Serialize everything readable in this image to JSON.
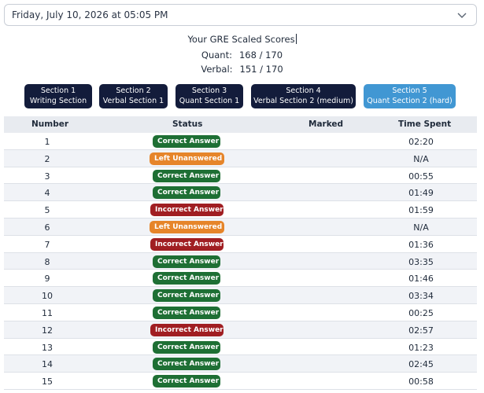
{
  "date_select": {
    "value": "Friday, July 10, 2026 at 05:05 PM",
    "icon": "chevron-down-icon"
  },
  "scores": {
    "title": "Your GRE Scaled Scores",
    "quant_label": "Quant:",
    "quant_value": "168 / 170",
    "verbal_label": "Verbal:",
    "verbal_value": "151 / 170"
  },
  "sections": [
    {
      "line1": "Section 1",
      "line2": "Writing Section",
      "active": false
    },
    {
      "line1": "Section 2",
      "line2": "Verbal Section 1",
      "active": false
    },
    {
      "line1": "Section 3",
      "line2": "Quant Section 1",
      "active": false
    },
    {
      "line1": "Section 4",
      "line2": "Verbal Section 2 (medium)",
      "active": false
    },
    {
      "line1": "Section 5",
      "line2": "Quant Section 2 (hard)",
      "active": true
    }
  ],
  "table": {
    "headers": {
      "number": "Number",
      "status": "Status",
      "marked": "Marked",
      "time": "Time Spent"
    },
    "rows": [
      {
        "number": "1",
        "status": "Correct Answer",
        "kind": "correct",
        "marked": "",
        "time": "02:20"
      },
      {
        "number": "2",
        "status": "Left Unanswered",
        "kind": "unanswered",
        "marked": "",
        "time": "N/A"
      },
      {
        "number": "3",
        "status": "Correct Answer",
        "kind": "correct",
        "marked": "",
        "time": "00:55"
      },
      {
        "number": "4",
        "status": "Correct Answer",
        "kind": "correct",
        "marked": "",
        "time": "01:49"
      },
      {
        "number": "5",
        "status": "Incorrect Answer",
        "kind": "incorrect",
        "marked": "",
        "time": "01:59"
      },
      {
        "number": "6",
        "status": "Left Unanswered",
        "kind": "unanswered",
        "marked": "",
        "time": "N/A"
      },
      {
        "number": "7",
        "status": "Incorrect Answer",
        "kind": "incorrect",
        "marked": "",
        "time": "01:36"
      },
      {
        "number": "8",
        "status": "Correct Answer",
        "kind": "correct",
        "marked": "",
        "time": "03:35"
      },
      {
        "number": "9",
        "status": "Correct Answer",
        "kind": "correct",
        "marked": "",
        "time": "01:46"
      },
      {
        "number": "10",
        "status": "Correct Answer",
        "kind": "correct",
        "marked": "",
        "time": "03:34"
      },
      {
        "number": "11",
        "status": "Correct Answer",
        "kind": "correct",
        "marked": "",
        "time": "00:25"
      },
      {
        "number": "12",
        "status": "Incorrect Answer",
        "kind": "incorrect",
        "marked": "",
        "time": "02:57"
      },
      {
        "number": "13",
        "status": "Correct Answer",
        "kind": "correct",
        "marked": "",
        "time": "01:23"
      },
      {
        "number": "14",
        "status": "Correct Answer",
        "kind": "correct",
        "marked": "",
        "time": "02:45"
      },
      {
        "number": "15",
        "status": "Correct Answer",
        "kind": "correct",
        "marked": "",
        "time": "00:58"
      }
    ]
  },
  "colors": {
    "section_button": "#131c3b",
    "section_button_active": "#4197d3",
    "correct": "#1e6f34",
    "unanswered": "#e6852a",
    "incorrect": "#a01e22"
  }
}
